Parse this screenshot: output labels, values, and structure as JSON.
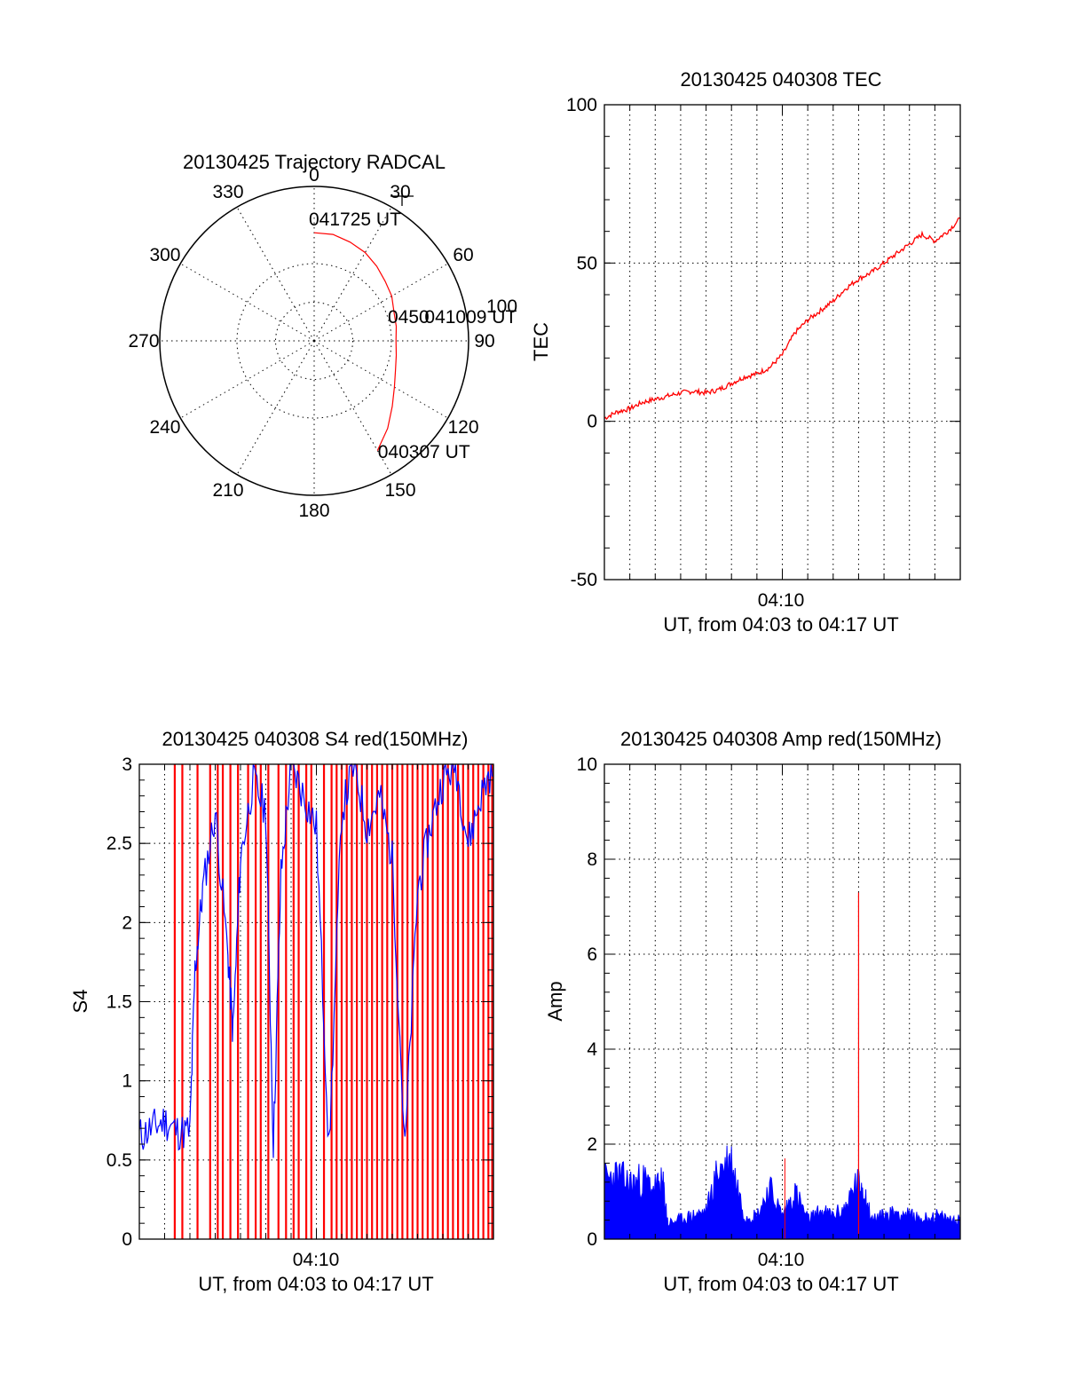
{
  "colors": {
    "red": "#ff0000",
    "blue": "#0000ff",
    "axis": "#000000"
  },
  "chart_data": [
    {
      "type": "polar",
      "title": "20130425 Trajectory RADCAL",
      "angle_labels": [
        "0",
        "30",
        "60",
        "90",
        "120",
        "150",
        "180",
        "210",
        "240",
        "270",
        "300",
        "330"
      ],
      "radius_label": "100",
      "rlim": [
        0,
        100
      ],
      "grid": true,
      "trajectory": {
        "azimuth_deg": [
          0,
          10,
          20,
          30,
          40,
          50,
          60,
          70,
          80,
          90,
          100,
          110,
          120,
          130,
          140,
          150
        ],
        "zenith": [
          70,
          70,
          68,
          66,
          63,
          60,
          58,
          55,
          54,
          53,
          54,
          56,
          60,
          66,
          74,
          82
        ]
      },
      "annotations": [
        {
          "text": "041725 UT",
          "azimuth_deg": 0,
          "zenith": 70
        },
        {
          "text": "041009 UT",
          "azimuth_deg": 90,
          "zenith": 60
        },
        {
          "text": "040307 UT",
          "azimuth_deg": 148,
          "zenith": 80
        }
      ],
      "overlap_text": "0450"
    },
    {
      "type": "line",
      "title": "20130425 040308 TEC",
      "xlabel": "UT, from 04:03 to 04:17 UT",
      "ylabel": "TEC",
      "x_tick_labels": [
        "04:10"
      ],
      "y_tick_labels": [
        "-50",
        "0",
        "50",
        "100"
      ],
      "xlim": [
        0,
        14
      ],
      "ylim": [
        -50,
        100
      ],
      "grid": true,
      "series": [
        {
          "color": "red",
          "x": [
            0,
            0.5,
            1,
            1.5,
            2,
            2.5,
            3,
            3.5,
            4,
            4.5,
            5,
            5.5,
            6,
            6.5,
            7,
            7.5,
            8,
            8.5,
            9,
            9.5,
            10,
            10.5,
            11,
            11.5,
            12,
            12.5,
            13,
            13.5,
            14
          ],
          "y": [
            1,
            3,
            4,
            6,
            7,
            8,
            9,
            9.5,
            9,
            10,
            12,
            14,
            15,
            17,
            21,
            28,
            32,
            35,
            38,
            42,
            45,
            47,
            50,
            53,
            56,
            59,
            57,
            60,
            64
          ]
        }
      ]
    },
    {
      "type": "line",
      "title": "20130425 040308 S4 red(150MHz)",
      "xlabel": "UT, from 04:03 to 04:17 UT",
      "ylabel": "S4",
      "x_tick_labels": [
        "04:10"
      ],
      "y_tick_labels": [
        "0",
        "0.5",
        "1",
        "1.5",
        "2",
        "2.5",
        "3"
      ],
      "xlim": [
        0,
        14
      ],
      "ylim": [
        0,
        3
      ],
      "grid": true,
      "series": [
        {
          "color": "blue",
          "x": [
            0,
            0.5,
            1,
            1.5,
            2,
            2.2,
            2.5,
            3,
            3.5,
            3.7,
            4,
            4.5,
            5,
            5.3,
            5.6,
            6,
            6.5,
            7,
            7.5,
            8,
            8.5,
            9,
            9.5,
            10,
            10.5,
            11,
            11.5,
            12,
            12.5,
            13,
            13.5,
            14
          ],
          "y": [
            0.65,
            0.7,
            0.75,
            0.68,
            0.68,
            1.7,
            2.2,
            2.7,
            1.8,
            1.3,
            2.4,
            2.9,
            2.7,
            0.6,
            2.3,
            3.0,
            2.8,
            2.6,
            0.55,
            2.7,
            3.0,
            2.6,
            2.8,
            2.4,
            0.55,
            2.2,
            2.6,
            2.9,
            3.0,
            2.5,
            2.8,
            3.0
          ]
        }
      ],
      "red_spikes_x": [
        1.4,
        1.7,
        2.3,
        2.8,
        3.1,
        3.3,
        3.6,
        3.9,
        4.3,
        4.6,
        4.8,
        5.1,
        5.5,
        5.8,
        6.1,
        6.3,
        6.6,
        6.8,
        7.3,
        7.6,
        7.8,
        8.0,
        8.2,
        8.4,
        8.6,
        8.8,
        9.0,
        9.2,
        9.4,
        9.6,
        9.8,
        10.0,
        10.2,
        10.4,
        10.6,
        10.8,
        11.0,
        11.2,
        11.4,
        11.6,
        11.8,
        12.0,
        12.2,
        12.4,
        12.6,
        12.8,
        13.0,
        13.2,
        13.4,
        13.6,
        13.8,
        13.95
      ]
    },
    {
      "type": "line",
      "title": "20130425 040308 Amp red(150MHz)",
      "xlabel": "UT, from 04:03 to 04:17 UT",
      "ylabel": "Amp",
      "x_tick_labels": [
        "04:10"
      ],
      "y_tick_labels": [
        "0",
        "2",
        "4",
        "6",
        "8",
        "10"
      ],
      "xlim": [
        0,
        14
      ],
      "ylim": [
        0,
        10
      ],
      "grid": true,
      "series": [
        {
          "color": "blue",
          "x": [
            0,
            0.5,
            1,
            1.5,
            2,
            2.3,
            2.5,
            3,
            3.5,
            4,
            4.5,
            5,
            5.5,
            6,
            6.5,
            7,
            7.5,
            8,
            8.5,
            9,
            9.5,
            9.9,
            10.2,
            10.5,
            11,
            11.5,
            12,
            12.5,
            13,
            13.5,
            14
          ],
          "y": [
            1.5,
            1.6,
            1.4,
            1.5,
            1.3,
            1.4,
            0.4,
            0.5,
            0.6,
            0.7,
            1.8,
            2.0,
            0.6,
            0.6,
            1.3,
            0.6,
            1.2,
            0.5,
            0.7,
            0.6,
            0.8,
            1.4,
            1.3,
            0.5,
            0.6,
            0.7,
            0.6,
            0.5,
            0.6,
            0.5,
            0.5
          ]
        }
      ],
      "red_spike": {
        "x": 10.0,
        "y": 7.3
      },
      "red_minor_spike": {
        "x": 7.1,
        "y": 1.7
      }
    }
  ]
}
